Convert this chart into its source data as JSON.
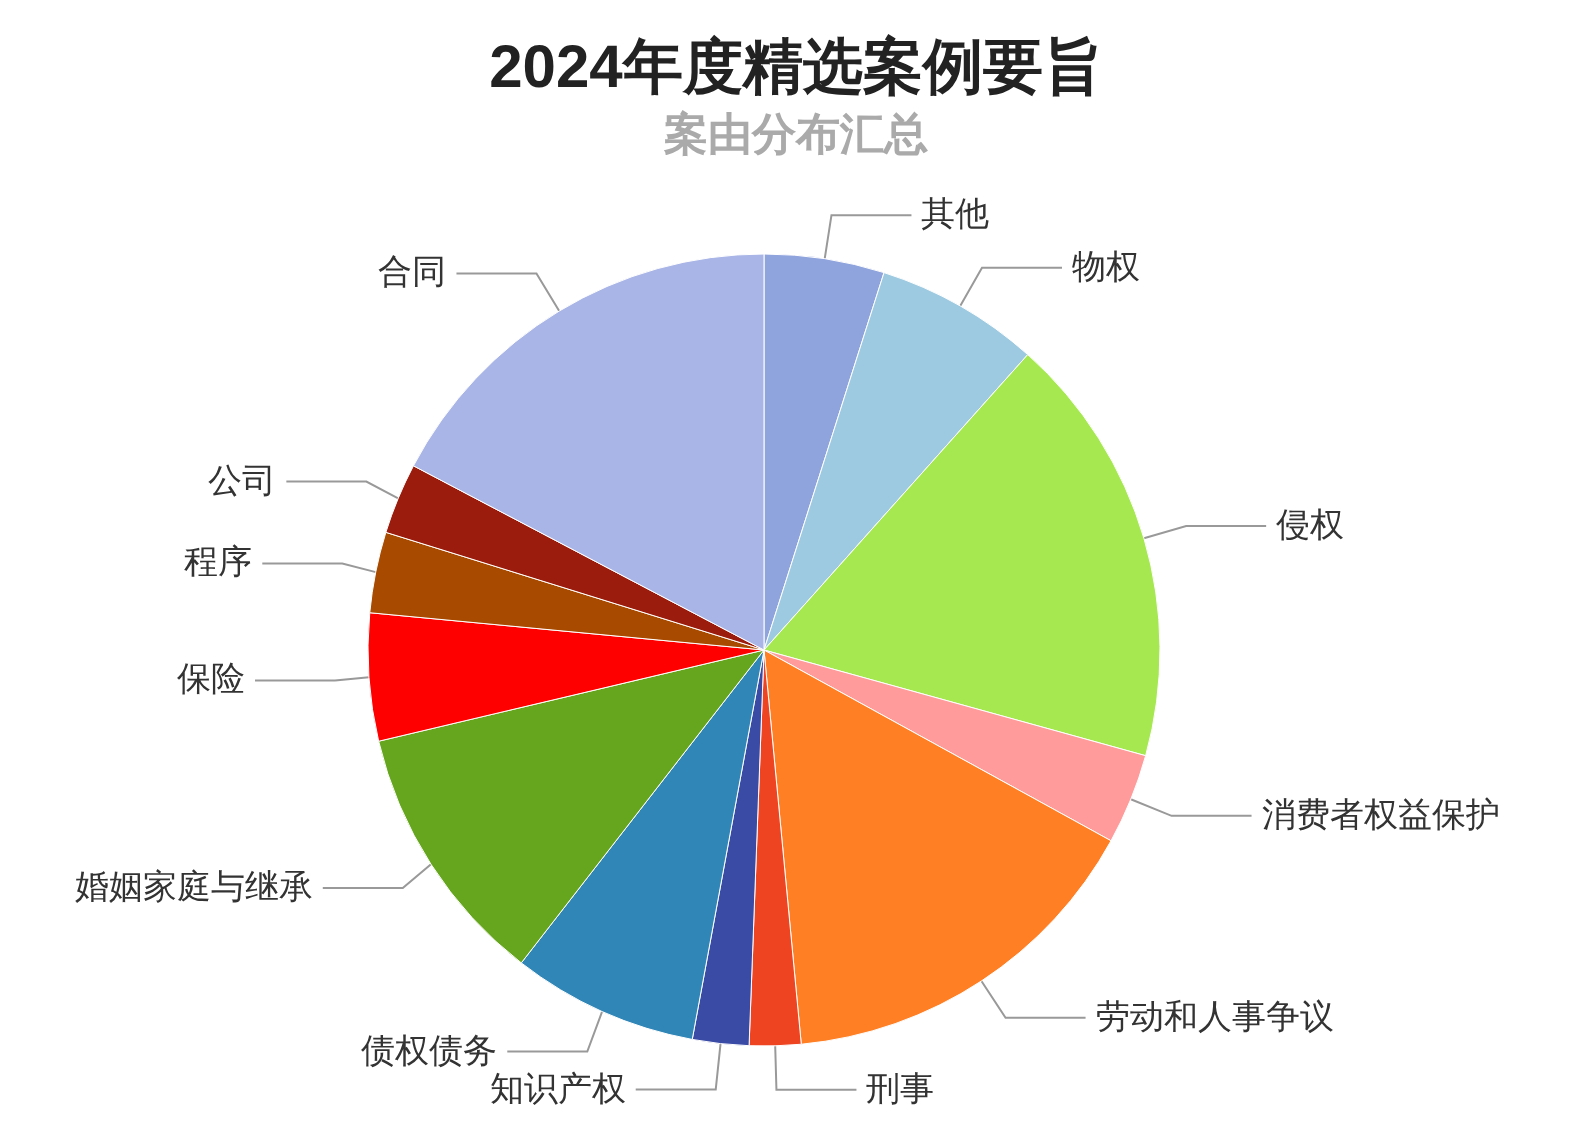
{
  "chart_data": {
    "type": "pie",
    "title": "2024年度精选案例要旨",
    "subtitle": "案由分布汇总",
    "categories": [
      "其他",
      "物权",
      "侵权",
      "消费者权益保护",
      "劳动和人事争议",
      "刑事",
      "知识产权",
      "债权债务",
      "婚姻家庭与继承",
      "保险",
      "程序",
      "公司",
      "合同"
    ],
    "values": [
      4.9,
      6.7,
      17.7,
      3.7,
      15.5,
      2.1,
      2.3,
      7.6,
      10.8,
      5.2,
      3.3,
      2.9,
      17.3
    ],
    "colors": [
      "#8fa3dd",
      "#9ecae1",
      "#a6e84f",
      "#ff9b9b",
      "#ff7f24",
      "#ee4422",
      "#3a4ba6",
      "#3186b8",
      "#66a61e",
      "#ff0000",
      "#a84a00",
      "#9b1c0c",
      "#a9b5e6"
    ],
    "legend": false
  }
}
